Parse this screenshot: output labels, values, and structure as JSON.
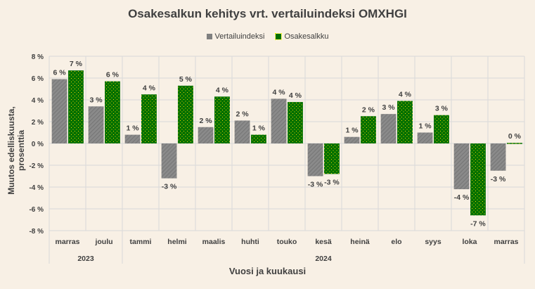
{
  "chart_data": {
    "type": "bar",
    "title": "Osakesalkun kehitys vrt. vertailuindeksi OMXHGI",
    "xlabel": "Vuosi ja kuukausi",
    "ylabel": "Muutos edelliskuusta, prosenttia",
    "ylim": [
      -8,
      8
    ],
    "yticks": [
      "-8 %",
      "-6 %",
      "-4 %",
      "-2 %",
      "0 %",
      "2 %",
      "4 %",
      "6 %",
      "8 %"
    ],
    "grid": true,
    "legend_position": "top",
    "categories": [
      "marras",
      "joulu",
      "tammi",
      "helmi",
      "maalis",
      "huhti",
      "touko",
      "kesä",
      "heinä",
      "elo",
      "syys",
      "loka",
      "marras"
    ],
    "years": [
      {
        "label": "2023",
        "span": 2
      },
      {
        "label": "2024",
        "span": 11
      }
    ],
    "series": [
      {
        "name": "Vertailuindeksi",
        "color": "#808080",
        "values": [
          5.9,
          3.4,
          0.8,
          -3.2,
          1.5,
          2.1,
          4.1,
          -3.0,
          0.6,
          2.7,
          1.0,
          -4.2,
          -2.5
        ],
        "labels": [
          "6 %",
          "3 %",
          "1 %",
          "-3 %",
          "2 %",
          "2 %",
          "4 %",
          "-3 %",
          "1 %",
          "3 %",
          "1 %",
          "-4 %",
          "-3 %"
        ]
      },
      {
        "name": "Osakesalkku",
        "color": "#007000",
        "values": [
          6.7,
          5.7,
          4.5,
          5.3,
          4.3,
          0.8,
          3.8,
          -2.8,
          2.5,
          3.9,
          2.6,
          -6.6,
          0.05
        ],
        "labels": [
          "7 %",
          "6 %",
          "4 %",
          "5 %",
          "4 %",
          "1 %",
          "4 %",
          "-3 %",
          "2 %",
          "4 %",
          "3 %",
          "-7 %",
          "0 %"
        ]
      }
    ]
  }
}
